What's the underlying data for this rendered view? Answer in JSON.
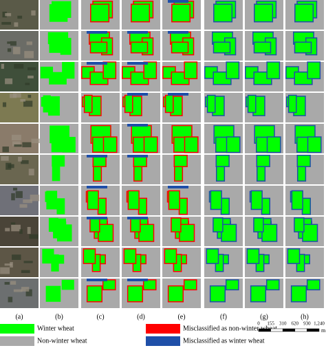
{
  "columns": [
    "(a)",
    "(b)",
    "(c)",
    "(d)",
    "(e)",
    "(f)",
    "(g)",
    "(h)"
  ],
  "legend": [
    "Winter wheat",
    "Non-winter wheat",
    "Misclassified as non-winter wheat",
    "Misclassified as winter wheat"
  ],
  "scale_bar": {
    "labels": [
      "0",
      "155",
      "310",
      "620",
      "930",
      "1,240"
    ],
    "unit": "m"
  }
}
